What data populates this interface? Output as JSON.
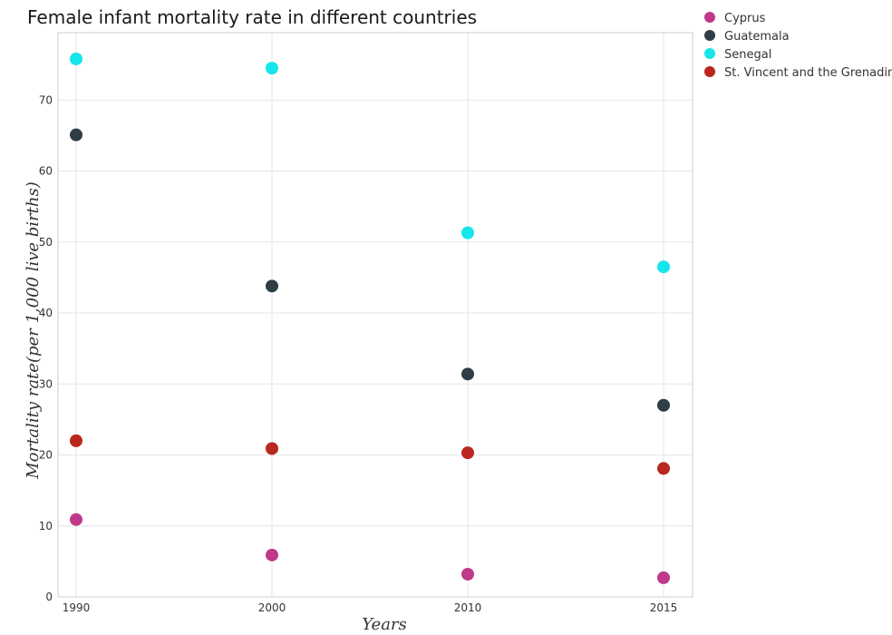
{
  "chart_data": {
    "type": "scatter",
    "title": "Female infant mortality rate in different countries",
    "xlabel": "Years",
    "ylabel": "Mortality rate(per 1,000 live births)",
    "categories": [
      "1990",
      "2000",
      "2010",
      "2015"
    ],
    "y_ticks": [
      "0",
      "10",
      "20",
      "30",
      "40",
      "50",
      "60",
      "70"
    ],
    "ylim": [
      0,
      79.5
    ],
    "grid": true,
    "legend_position": "top-right",
    "series": [
      {
        "name": "Cyprus",
        "color": "#c0398a",
        "values": [
          10.9,
          5.9,
          3.2,
          2.7
        ]
      },
      {
        "name": "Guatemala",
        "color": "#2f3e46",
        "values": [
          65.1,
          43.8,
          31.4,
          27.0
        ]
      },
      {
        "name": "Senegal",
        "color": "#14e6ea",
        "values": [
          75.8,
          74.5,
          51.3,
          46.5
        ]
      },
      {
        "name": "St. Vincent and the Grenadines",
        "color": "#b8281e",
        "values": [
          22.0,
          20.9,
          20.3,
          18.1
        ]
      }
    ]
  }
}
